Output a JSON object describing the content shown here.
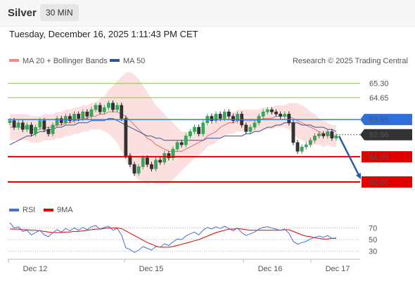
{
  "header": {
    "symbol": "Silver",
    "interval": "30 MIN",
    "timestamp": "Tuesday, December 16, 2025 1:11:43 PM CET"
  },
  "legend": {
    "items": [
      {
        "label": "MA 20 + Bollinger Bands",
        "color": "#f28b8b"
      },
      {
        "label": "MA 50",
        "color": "#2f5597"
      }
    ],
    "copyright": "Research © 2025 Trading Central"
  },
  "chart_data": {
    "type": "line",
    "subtype": "candlestick-with-indicators",
    "x_ticks": [
      "Dec 12",
      "Dec 15",
      "Dec 16",
      "Dec 17"
    ],
    "ylim": [
      60.0,
      65.9
    ],
    "resistance_levels": [
      {
        "label": "65.30",
        "value": 65.3,
        "color": "#8cbf5a"
      },
      {
        "label": "64.65",
        "value": 64.65,
        "color": "#8cbf5a"
      }
    ],
    "pivot_level": {
      "label": "63.65",
      "value": 63.65,
      "color": "#2f6fdc"
    },
    "last_price": {
      "label": "62.96",
      "value": 62.96,
      "color": "#333333"
    },
    "support_levels": [
      {
        "label": "61.95",
        "value": 61.95,
        "color": "#e00000"
      },
      {
        "label": "60.80",
        "value": 60.8,
        "color": "#e00000"
      }
    ],
    "projection": {
      "from": 62.96,
      "to": 60.8,
      "color": "#2a5fa8"
    },
    "close": [
      63.6,
      63.3,
      63.5,
      63.2,
      63.4,
      63.0,
      63.3,
      63.6,
      63.2,
      63.0,
      63.4,
      63.7,
      63.5,
      63.8,
      63.6,
      63.9,
      63.7,
      64.0,
      63.8,
      64.1,
      64.3,
      64.0,
      64.2,
      64.4,
      64.1,
      64.3,
      63.7,
      62.0,
      61.6,
      61.2,
      61.5,
      61.9,
      61.6,
      61.4,
      61.8,
      61.7,
      62.1,
      61.9,
      62.3,
      62.6,
      62.5,
      62.9,
      63.1,
      63.3,
      63.0,
      63.5,
      63.8,
      63.6,
      63.9,
      63.7,
      64.0,
      63.8,
      63.6,
      63.9,
      63.4,
      63.1,
      63.3,
      63.5,
      63.8,
      64.0,
      64.1,
      64.0,
      63.9,
      63.8,
      63.9,
      63.5,
      62.6,
      62.2,
      62.4,
      62.5,
      62.7,
      62.9,
      63.0,
      62.9,
      63.1,
      62.8,
      62.9
    ],
    "ma20": [
      63.3,
      63.3,
      63.3,
      63.3,
      63.3,
      63.2,
      63.2,
      63.2,
      63.3,
      63.3,
      63.3,
      63.4,
      63.4,
      63.5,
      63.5,
      63.6,
      63.6,
      63.7,
      63.7,
      63.8,
      63.8,
      63.9,
      63.9,
      64.0,
      64.0,
      64.0,
      63.9,
      63.8,
      63.6,
      63.4,
      63.2,
      63.0,
      62.8,
      62.7,
      62.5,
      62.4,
      62.3,
      62.2,
      62.2,
      62.2,
      62.2,
      62.3,
      62.4,
      62.5,
      62.6,
      62.7,
      62.9,
      63.0,
      63.1,
      63.3,
      63.4,
      63.5,
      63.5,
      63.6,
      63.6,
      63.6,
      63.6,
      63.6,
      63.6,
      63.7,
      63.7,
      63.7,
      63.8,
      63.8,
      63.8,
      63.8,
      63.7,
      63.6,
      63.5,
      63.4,
      63.3,
      63.2,
      63.1,
      63.0,
      63.0,
      62.9,
      62.9
    ],
    "ma50": [
      62.5,
      62.6,
      62.7,
      62.8,
      62.9,
      62.9,
      63.0,
      63.1,
      63.1,
      63.2,
      63.2,
      63.3,
      63.3,
      63.4,
      63.4,
      63.4,
      63.5,
      63.5,
      63.5,
      63.6,
      63.6,
      63.6,
      63.6,
      63.7,
      63.7,
      63.6,
      63.5,
      63.4,
      63.3,
      63.2,
      63.1,
      63.0,
      62.9,
      62.9,
      62.8,
      62.8,
      62.7,
      62.7,
      62.7,
      62.7,
      62.7,
      62.7,
      62.7,
      62.7,
      62.7,
      62.7,
      62.8,
      62.8,
      62.8,
      62.8,
      62.9,
      62.9,
      62.9,
      62.9,
      62.9,
      63.0,
      63.0,
      63.1,
      63.1,
      63.2,
      63.3,
      63.3,
      63.4,
      63.4,
      63.5,
      63.5,
      63.5,
      63.5,
      63.4,
      63.4,
      63.4,
      63.3,
      63.3,
      63.3,
      63.2,
      63.2,
      63.1
    ],
    "bb_width": [
      0.6,
      0.6,
      0.6,
      0.6,
      0.6,
      0.6,
      0.6,
      0.6,
      0.6,
      0.6,
      0.6,
      0.6,
      0.6,
      0.6,
      0.6,
      0.6,
      0.6,
      0.6,
      0.6,
      0.6,
      0.6,
      0.7,
      0.8,
      1.0,
      1.2,
      1.4,
      1.7,
      2.0,
      2.2,
      2.3,
      2.3,
      2.2,
      2.1,
      1.9,
      1.8,
      1.7,
      1.6,
      1.5,
      1.3,
      1.1,
      0.9,
      0.8,
      0.7,
      0.6,
      0.6,
      0.5,
      0.5,
      0.5,
      0.5,
      0.5,
      0.5,
      0.5,
      0.5,
      0.5,
      0.5,
      0.5,
      0.5,
      0.5,
      0.5,
      0.5,
      0.5,
      0.5,
      0.5,
      0.5,
      0.5,
      0.6,
      0.7,
      0.8,
      0.8,
      0.8,
      0.7,
      0.7,
      0.6,
      0.6,
      0.5,
      0.5,
      0.5
    ],
    "rsi": {
      "legend": [
        {
          "label": "RSI",
          "color": "#4a6fd4"
        },
        {
          "label": "9MA",
          "color": "#e00000"
        }
      ],
      "ticks": [
        70,
        50,
        30
      ],
      "ylim": [
        20,
        85
      ],
      "rsi": [
        79,
        70,
        72,
        64,
        66,
        58,
        62,
        66,
        58,
        55,
        62,
        67,
        63,
        69,
        65,
        70,
        66,
        71,
        67,
        72,
        74,
        68,
        71,
        73,
        66,
        69,
        58,
        36,
        33,
        28,
        32,
        38,
        35,
        32,
        38,
        37,
        43,
        40,
        46,
        51,
        50,
        56,
        60,
        63,
        58,
        66,
        71,
        68,
        72,
        69,
        73,
        69,
        65,
        70,
        62,
        57,
        60,
        63,
        68,
        71,
        72,
        70,
        68,
        66,
        68,
        61,
        47,
        42,
        45,
        47,
        51,
        54,
        56,
        54,
        57,
        52,
        53
      ],
      "ma9": [
        68,
        68,
        68,
        67,
        67,
        66,
        66,
        65,
        64,
        63,
        62,
        62,
        62,
        63,
        63,
        64,
        64,
        65,
        66,
        67,
        68,
        68,
        69,
        70,
        70,
        70,
        69,
        65,
        61,
        57,
        53,
        49,
        45,
        42,
        39,
        37,
        37,
        37,
        38,
        40,
        42,
        44,
        46,
        48,
        50,
        53,
        56,
        59,
        62,
        64,
        66,
        68,
        68,
        69,
        68,
        67,
        66,
        66,
        66,
        66,
        66,
        66,
        66,
        66,
        67,
        67,
        64,
        61,
        58,
        56,
        55,
        53,
        52,
        51,
        51,
        52,
        52
      ]
    }
  }
}
